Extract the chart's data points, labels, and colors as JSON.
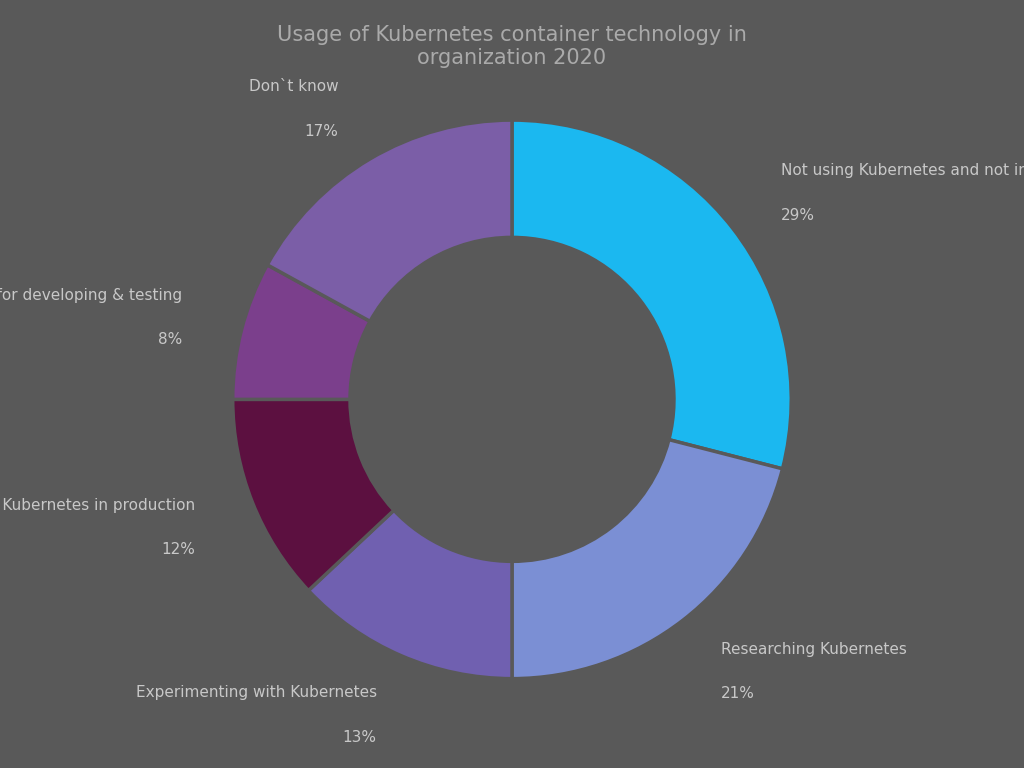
{
  "title": "Usage of Kubernetes container technology in\norganization 2020",
  "background_color": "#595959",
  "labels": [
    "Not using Kubernetes and not interested",
    "Researching Kubernetes",
    "Experimenting with Kubernetes",
    "Running Kubernetes in production",
    "Using Kubernetes for developing & testing",
    "Don`t know"
  ],
  "percentages": [
    29,
    21,
    13,
    12,
    8,
    17
  ],
  "colors": [
    "#1BB8F0",
    "#7B8FD4",
    "#7060B0",
    "#5C1040",
    "#7B3F8C",
    "#7B5EA7"
  ],
  "label_color": "#C8C8C8",
  "title_color": "#AAAAAA",
  "title_fontsize": 15,
  "label_fontsize": 11,
  "pct_fontsize": 11
}
